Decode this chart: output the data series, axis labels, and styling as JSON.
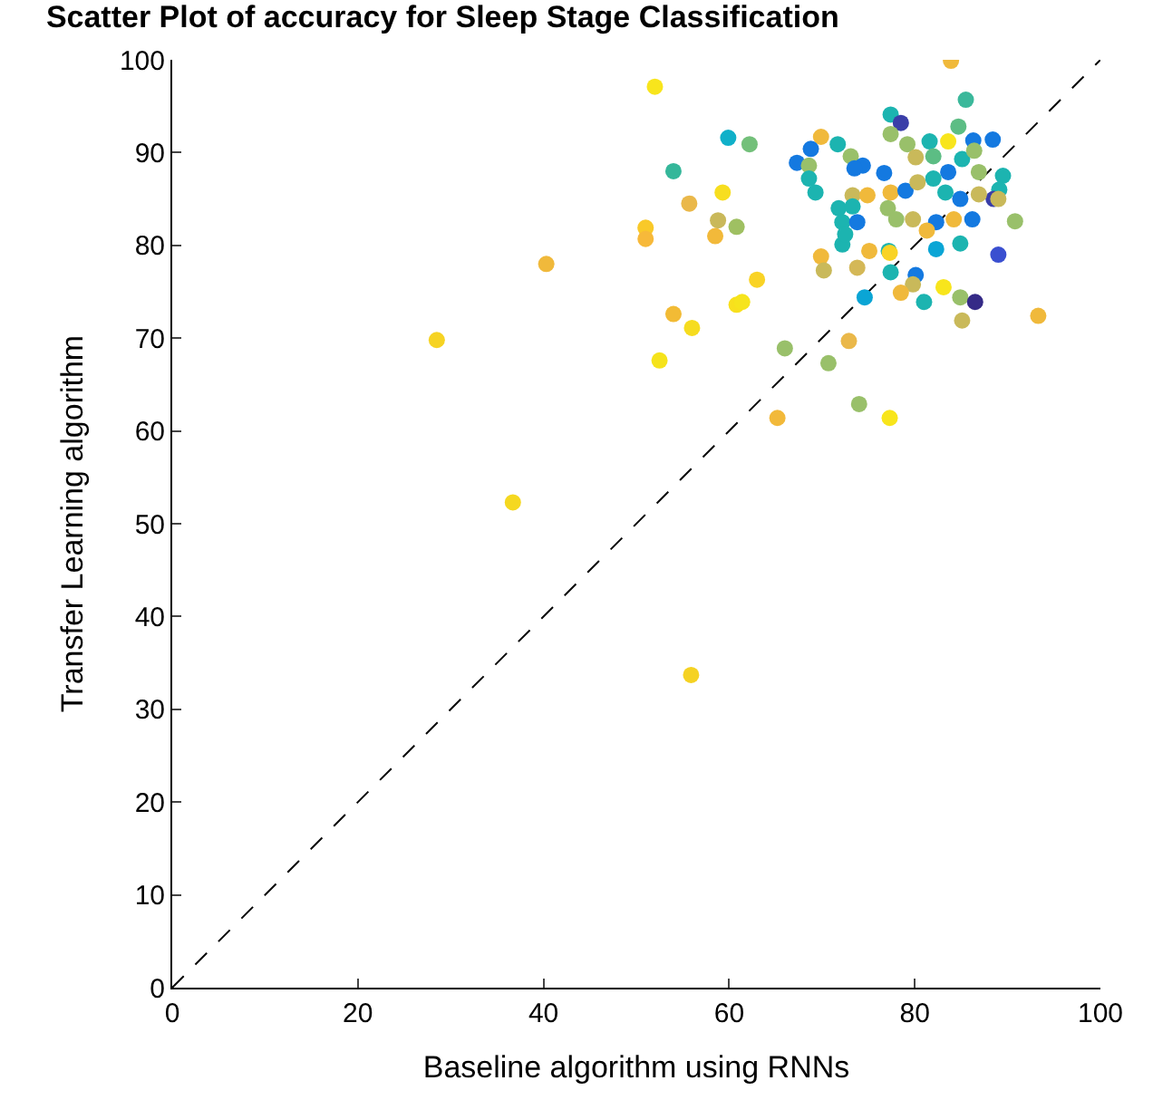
{
  "chart_data": {
    "type": "scatter",
    "title": "Scatter Plot of accuracy for Sleep Stage Classification",
    "xlabel": "Baseline algorithm using RNNs",
    "ylabel": "Transfer Learning algorithm",
    "xlim": [
      0,
      100
    ],
    "ylim": [
      0,
      100
    ],
    "xticks": [
      0,
      20,
      40,
      60,
      80,
      100
    ],
    "yticks": [
      0,
      10,
      20,
      30,
      40,
      50,
      60,
      70,
      80,
      90,
      100
    ],
    "grid": false,
    "series": [
      {
        "marker": "circle",
        "x": [
          28.5,
          36.7,
          40.3,
          52,
          51,
          51,
          52.5,
          54,
          56,
          55.9,
          54,
          55.7,
          58.8,
          58.5,
          59.3,
          60.8,
          60.8,
          61.4,
          63,
          59.9,
          62.2,
          65.2,
          66,
          70.7,
          72.9,
          74,
          77.3,
          69.9,
          70.2,
          75.1,
          73.8,
          77.2,
          77.3,
          82.3,
          84.9,
          89,
          72.2,
          77.4,
          80.1,
          79.8,
          78.5,
          74.6,
          81,
          83.1,
          84.9,
          86.5,
          85.1,
          93.3,
          83.9,
          85.5,
          77.4,
          78.5,
          84.7,
          69.9,
          77.4,
          71.7,
          81.6,
          83.6,
          86.3,
          88.4,
          79.2,
          68.8,
          67.3,
          68.6,
          73.1,
          74.4,
          82,
          80.1,
          85.1,
          86.4,
          73.5,
          76.7,
          83.6,
          68.6,
          69.3,
          73.3,
          74.9,
          77.4,
          79,
          80.3,
          82,
          83.3,
          86.9,
          89.5,
          89.1,
          88.5,
          86.9,
          89,
          84.9,
          71.8,
          73.3,
          77.1,
          79.8,
          82.3,
          84.2,
          86.2,
          90.8,
          81.3,
          72.2,
          72.5,
          73.8,
          78
        ],
        "values": [
          69.8,
          52.3,
          78,
          97.1,
          81.9,
          80.7,
          67.6,
          72.6,
          71.1,
          33.7,
          88,
          84.5,
          82.7,
          81,
          85.7,
          82,
          73.6,
          73.9,
          76.3,
          91.6,
          90.9,
          61.4,
          68.9,
          67.3,
          69.7,
          62.9,
          61.4,
          78.8,
          77.3,
          79.4,
          77.6,
          79.4,
          79.2,
          79.6,
          80.2,
          79,
          80.1,
          77.1,
          76.8,
          75.8,
          74.9,
          74.4,
          73.9,
          75.5,
          74.4,
          73.9,
          71.9,
          72.4,
          99.9,
          95.7,
          94.1,
          93.2,
          92.8,
          91.7,
          92,
          90.9,
          91.2,
          91.2,
          91.3,
          91.4,
          90.9,
          90.4,
          88.9,
          88.6,
          89.6,
          88.6,
          89.6,
          89.5,
          89.3,
          90.2,
          88.3,
          87.8,
          87.9,
          87.2,
          85.7,
          85.4,
          85.4,
          85.7,
          85.9,
          86.8,
          87.2,
          85.7,
          87.9,
          87.5,
          86,
          85,
          85.5,
          85,
          85,
          84,
          84.2,
          84,
          82.8,
          82.5,
          82.8,
          82.8,
          82.6,
          81.6,
          82.5,
          81.2,
          82.5,
          82.8
        ],
        "colors": [
          "#f6d323",
          "#f5d820",
          "#f0b93b",
          "#f8e51c",
          "#f9c929",
          "#f7b93a",
          "#f5e31b",
          "#f2bb35",
          "#f6dc1f",
          "#f5d223",
          "#35b79a",
          "#eab84a",
          "#c9b85a",
          "#f2b93a",
          "#f7de1f",
          "#9fc062",
          "#f8e01d",
          "#f6e41c",
          "#f9d325",
          "#10b0c9",
          "#73c07a",
          "#f2b93a",
          "#99c06a",
          "#99c06a",
          "#eab84a",
          "#99c06a",
          "#f8e51c",
          "#f0b93b",
          "#c9b95a",
          "#f0b93b",
          "#d4b857",
          "#1cb4b0",
          "#f9d325",
          "#0aa5d5",
          "#1cb4b0",
          "#3a4fd0",
          "#1cb4b0",
          "#1cb4b0",
          "#1479e0",
          "#c9b95a",
          "#f0b93b",
          "#0aa5d5",
          "#1cb4b0",
          "#f8e51c",
          "#99c06a",
          "#352a87",
          "#c9b95a",
          "#f0b93b",
          "#f0b93b",
          "#3bb89b",
          "#1cb4b0",
          "#3a3ea8",
          "#5cbd84",
          "#f0b93b",
          "#99c06a",
          "#1cb4b0",
          "#1cb4b0",
          "#f8e51c",
          "#1479e0",
          "#1479e0",
          "#99c06a",
          "#1479e0",
          "#1479e0",
          "#99c06a",
          "#99c06a",
          "#1479e0",
          "#5cbd84",
          "#c9b95a",
          "#1cb4b0",
          "#99c06a",
          "#1479e0",
          "#1479e0",
          "#1479e0",
          "#1cb4b0",
          "#1cb4b0",
          "#c9b95a",
          "#f0b93b",
          "#f0b93b",
          "#1479e0",
          "#c9b95a",
          "#1cb4b0",
          "#1cb4b0",
          "#99c06a",
          "#1cb4b0",
          "#1cb4b0",
          "#3a3ea8",
          "#c9b95a",
          "#c9b95a",
          "#1479e0",
          "#1cb4b0",
          "#1cb4b0",
          "#99c06a",
          "#c9b95a",
          "#1479e0",
          "#f0b93b",
          "#1479e0",
          "#99c06a",
          "#f0b93b",
          "#1cb4b0",
          "#1cb4b0",
          "#1479e0",
          "#99c06a"
        ]
      },
      {
        "type": "line",
        "color": "#000000",
        "line_style": "dashed",
        "marker": "none",
        "x": [
          0,
          100
        ],
        "values": [
          0,
          100
        ]
      }
    ]
  }
}
